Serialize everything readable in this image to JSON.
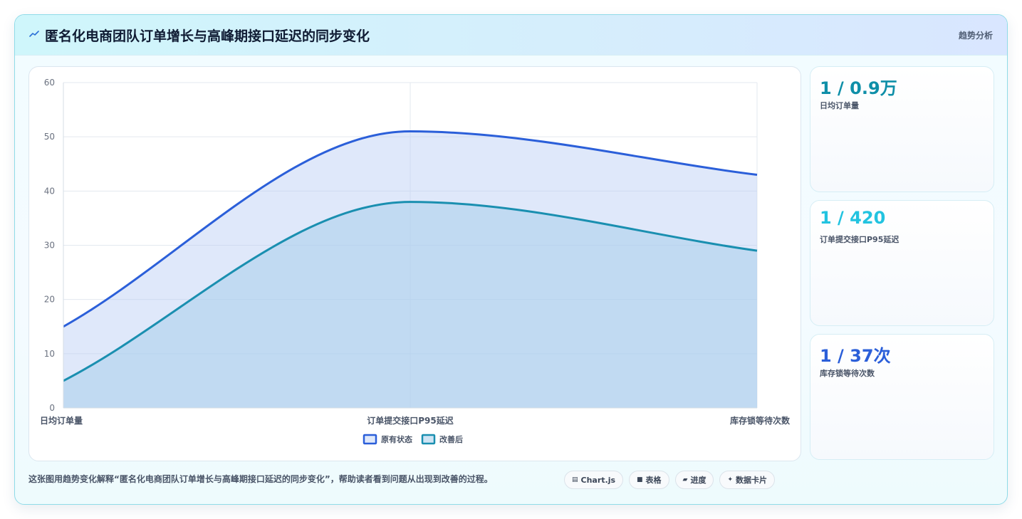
{
  "header": {
    "title": "匿名化电商团队订单增长与高峰期接口延迟的同步变化",
    "link_label": "趋势分析",
    "icon": "zigzag-icon"
  },
  "stats": [
    {
      "value": "1 / 0.9万",
      "label": "日均订单量",
      "color": "#0f8fa8"
    },
    {
      "value": "1 / 420",
      "label": "订单提交接口P95延迟",
      "color": "#22c3e0"
    },
    {
      "value": "1 / 37次",
      "label": "库存锁等待次数",
      "color": "#2b5fd9"
    }
  ],
  "footer": {
    "description": "这张图用趋势变化解释“匿名化电商团队订单增长与高峰期接口延迟的同步变化”，帮助读者看到问题从出现到改善的过程。",
    "chips": [
      {
        "icon": "▤",
        "icon_name": "chart-icon",
        "label": "Chart.js"
      },
      {
        "icon": "■",
        "icon_name": "table-icon",
        "label": "表格"
      },
      {
        "icon": "▰",
        "icon_name": "progress-icon",
        "label": "进度"
      },
      {
        "icon": "✦",
        "icon_name": "sparkle-icon",
        "label": "数据卡片"
      }
    ]
  },
  "chart_data": {
    "type": "area",
    "categories": [
      "日均订单量",
      "订单提交接口P95延迟",
      "库存锁等待次数"
    ],
    "series": [
      {
        "name": "原有状态",
        "values": [
          15,
          51,
          43
        ],
        "color": "#2b5fd9",
        "fill": "rgba(185, 205, 245, 0.45)"
      },
      {
        "name": "改善后",
        "values": [
          5,
          38,
          29
        ],
        "color": "#1a8fb0",
        "fill": "rgba(168, 205, 235, 0.55)"
      }
    ],
    "ylim": [
      0,
      60
    ],
    "yticks": [
      0,
      10,
      20,
      30,
      40,
      50,
      60
    ],
    "grid": true,
    "legend": "bottom"
  }
}
